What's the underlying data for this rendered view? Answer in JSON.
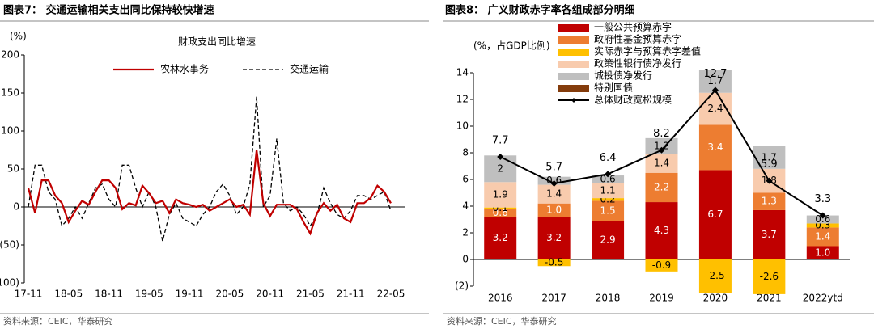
{
  "chart_data": [
    {
      "type": "line",
      "title": "图表7：  交通运输相关支出同比保持较快增速",
      "subtitle": "财政支出同比增速",
      "y_label": "(%)",
      "source": "资料来源：CEIC，华泰研究",
      "categories": [
        "17-11",
        null,
        null,
        null,
        null,
        null,
        "18-05",
        null,
        null,
        null,
        null,
        null,
        "18-11",
        null,
        null,
        null,
        null,
        null,
        "19-05",
        null,
        null,
        null,
        null,
        null,
        "19-11",
        null,
        null,
        null,
        null,
        null,
        "20-05",
        null,
        null,
        null,
        null,
        null,
        "20-11",
        null,
        null,
        null,
        null,
        null,
        "21-05",
        null,
        null,
        null,
        null,
        null,
        "21-11",
        null,
        null,
        null,
        null,
        null,
        "22-05"
      ],
      "series": [
        {
          "name": "农林水事务",
          "color": "#c00000",
          "dash": false,
          "values": [
            25,
            -8,
            35,
            35,
            15,
            5,
            -20,
            -5,
            8,
            3,
            20,
            35,
            35,
            25,
            -3,
            5,
            2,
            28,
            18,
            5,
            8,
            -8,
            10,
            5,
            3,
            0,
            3,
            -5,
            0,
            5,
            10,
            0,
            3,
            -10,
            75,
            5,
            -12,
            3,
            3,
            3,
            -3,
            -20,
            -35,
            -8,
            5,
            -5,
            3,
            -15,
            -20,
            5,
            5,
            12,
            28,
            20,
            5
          ]
        },
        {
          "name": "交通运输",
          "color": "#000000",
          "dash": true,
          "values": [
            0,
            55,
            55,
            20,
            10,
            -25,
            -15,
            0,
            -15,
            5,
            25,
            30,
            10,
            0,
            55,
            55,
            25,
            0,
            20,
            0,
            -45,
            -10,
            5,
            -15,
            -20,
            -25,
            -10,
            0,
            20,
            30,
            15,
            -10,
            0,
            30,
            145,
            0,
            15,
            90,
            5,
            -5,
            0,
            -10,
            -25,
            -10,
            25,
            5,
            -10,
            -15,
            -5,
            15,
            15,
            10,
            15,
            20,
            -5
          ]
        }
      ],
      "ylim": [
        -100,
        200
      ],
      "yticks": [
        {
          "value": -100,
          "label": "(100)"
        },
        {
          "value": -50,
          "label": "(50)"
        },
        0,
        50,
        100,
        150,
        200
      ]
    },
    {
      "type": "bar",
      "stacked": true,
      "title": "图表8：  广义财政赤字率各组成部分明细",
      "y_label": "(%，占GDP比例)",
      "source": "资料来源：CEIC，华泰研究",
      "categories": [
        "2016",
        "2017",
        "2018",
        "2019",
        "2020",
        "2021",
        "2022ytd"
      ],
      "series": [
        {
          "name": "一般公共预算赤字",
          "color": "#c00000",
          "label_color": "#ffffff",
          "values": [
            3.2,
            3.2,
            2.9,
            4.3,
            6.7,
            3.7,
            1.0
          ],
          "value_labels": [
            "3.2",
            "3.2",
            "2.9",
            "4.3",
            "6.7",
            "3.7",
            "1.0"
          ]
        },
        {
          "name": "政府性基金预算赤字",
          "color": "#ed7d31",
          "label_color": "#ffffff",
          "values": [
            0.6,
            1.0,
            1.5,
            2.2,
            3.4,
            1.3,
            1.4
          ],
          "value_labels": [
            "0.6",
            "1.0",
            "1.5",
            "2.2",
            "3.4",
            "1.3",
            "1.4"
          ]
        },
        {
          "name": "实际赤字与预算赤字差值",
          "color": "#ffc000",
          "label_color": "#000000",
          "values": [
            0.1,
            -0.5,
            0.2,
            -0.9,
            -2.5,
            -2.6,
            0.3
          ]
        },
        {
          "name": "政策性银行债净发行",
          "color": "#f8cbad",
          "label_color": "#000000",
          "values": [
            1.9,
            1.4,
            1.1,
            1.4,
            2.4,
            1.8,
            null
          ]
        },
        {
          "name": "城投债净发行",
          "color": "#bfbfbf",
          "label_color": "#000000",
          "values": [
            2.0,
            0.6,
            0.6,
            1.2,
            1.7,
            1.7,
            0.6
          ]
        },
        {
          "name": "特别国债",
          "color": "#843c0c",
          "label_color": "#ffffff",
          "values": [
            null,
            null,
            null,
            null,
            null,
            null,
            null
          ]
        },
        {
          "name": "总体财政宽松规模",
          "type": "line",
          "color": "#000000",
          "values": [
            7.7,
            5.7,
            6.4,
            8.2,
            12.7,
            5.9,
            3.3
          ]
        }
      ],
      "ylim": [
        -2,
        14
      ],
      "yticks": [
        {
          "value": -2,
          "label": "(2)"
        },
        0,
        2,
        4,
        6,
        8,
        10,
        12,
        14
      ]
    }
  ]
}
